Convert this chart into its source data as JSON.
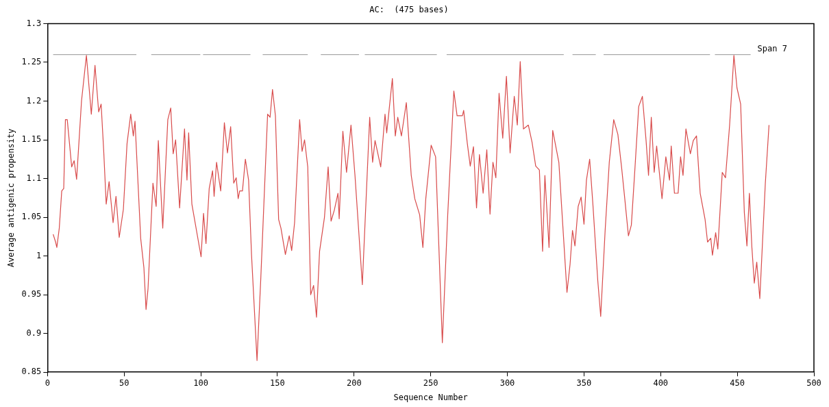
{
  "chart_data": {
    "type": "line",
    "title": "AC:  (475 bases)",
    "xlabel": "Sequence Number",
    "ylabel": "Average antigenic propensity",
    "xlim": [
      0,
      500
    ],
    "xticks": [
      0,
      50,
      100,
      150,
      200,
      250,
      300,
      350,
      400,
      450,
      500
    ],
    "ylim": [
      0.85,
      1.3
    ],
    "yticks": [
      0.85,
      0.9,
      0.95,
      1,
      1.05,
      1.1,
      1.15,
      1.2,
      1.25,
      1.3
    ],
    "grid": false,
    "legend": false,
    "marker": "none",
    "line_style": "solid",
    "series": [
      {
        "color": "#d84a4a",
        "x": [
          3.7,
          5.3,
          6.1,
          7.7,
          9.3,
          10.6,
          11.7,
          12.9,
          15.8,
          17.4,
          19,
          20.6,
          22.2,
          25.4,
          28.6,
          31,
          33.4,
          35,
          36.7,
          38.3,
          40.2,
          42.8,
          44.7,
          46.8,
          49.5,
          51.9,
          54.3,
          56,
          57.1,
          58.4,
          60.8,
          62.9,
          64.3,
          65.6,
          68.8,
          70.9,
          72.3,
          75.2,
          78.5,
          80.4,
          82,
          83.6,
          86.2,
          89.4,
          91,
          92.1,
          94.2,
          100.2,
          101.8,
          103.4,
          105.5,
          107.7,
          108.7,
          110.3,
          113,
          115.4,
          117.4,
          119.5,
          121.5,
          123.1,
          124.4,
          125.4,
          127.2,
          129.1,
          131.2,
          133.1,
          136.7,
          139.2,
          143.6,
          145.2,
          146.8,
          148.7,
          150.8,
          152.3,
          155.2,
          157.7,
          159.3,
          161.2,
          164.5,
          166.1,
          167.7,
          169.8,
          171.7,
          173.6,
          175.5,
          177.5,
          180.7,
          183.1,
          185,
          187.1,
          189.5,
          190.3,
          192.7,
          195.1,
          198,
          200.6,
          205.4,
          210.2,
          212.1,
          213.7,
          217.4,
          220.2,
          221.3,
          225,
          226.9,
          228.5,
          230.9,
          234.1,
          237.3,
          239.6,
          242.8,
          244.9,
          246.8,
          250.3,
          253.2,
          257.6,
          261.1,
          265.1,
          267.2,
          270.7,
          271.5,
          273.9,
          275.8,
          277.9,
          279.9,
          281.8,
          284.2,
          286.6,
          288.7,
          290.6,
          292.5,
          294.6,
          297,
          299.4,
          301.8,
          304.5,
          306.5,
          308.4,
          310.5,
          313.7,
          316.1,
          318.5,
          320.9,
          323,
          324.5,
          327.2,
          329.6,
          333.6,
          338.9,
          340.9,
          342.5,
          344.1,
          346.2,
          348.1,
          350,
          351.6,
          353.7,
          355.8,
          359,
          360.9,
          363.8,
          366.5,
          369.4,
          372.1,
          374.5,
          376.6,
          379,
          380.9,
          383.3,
          385.7,
          388.1,
          390.5,
          392.1,
          393.9,
          395.8,
          397.4,
          400.9,
          403.4,
          405.8,
          406.9,
          409,
          411.4,
          413,
          414.6,
          416.5,
          419.4,
          421.3,
          423.4,
          425.8,
          429,
          430.6,
          432.7,
          433.8,
          435.9,
          437.3,
          440.2,
          442.3,
          445,
          447.8,
          449.8,
          452.2,
          454.6,
          456.3,
          457.9,
          459.5,
          461.1,
          462.7,
          464.7,
          468.3,
          470.7
        ],
        "values": [
          1.028,
          1.018,
          1.011,
          1.036,
          1.084,
          1.087,
          1.176,
          1.176,
          1.115,
          1.123,
          1.099,
          1.149,
          1.2,
          1.259,
          1.183,
          1.246,
          1.186,
          1.196,
          1.135,
          1.067,
          1.096,
          1.043,
          1.077,
          1.024,
          1.06,
          1.145,
          1.183,
          1.155,
          1.174,
          1.121,
          1.023,
          0.985,
          0.931,
          0.958,
          1.094,
          1.064,
          1.149,
          1.036,
          1.176,
          1.191,
          1.132,
          1.15,
          1.062,
          1.164,
          1.098,
          1.159,
          1.067,
          0.999,
          1.055,
          1.016,
          1.087,
          1.11,
          1.077,
          1.121,
          1.084,
          1.172,
          1.133,
          1.167,
          1.094,
          1.101,
          1.074,
          1.084,
          1.084,
          1.125,
          1.098,
          1.002,
          0.865,
          0.973,
          1.183,
          1.179,
          1.215,
          1.181,
          1.047,
          1.036,
          1.002,
          1.026,
          1.007,
          1.043,
          1.176,
          1.135,
          1.15,
          1.115,
          0.95,
          0.962,
          0.921,
          1.006,
          1.05,
          1.115,
          1.045,
          1.059,
          1.081,
          1.048,
          1.161,
          1.108,
          1.169,
          1.104,
          0.963,
          1.179,
          1.121,
          1.149,
          1.115,
          1.183,
          1.159,
          1.229,
          1.155,
          1.179,
          1.155,
          1.198,
          1.104,
          1.074,
          1.053,
          1.011,
          1.074,
          1.143,
          1.128,
          0.888,
          1.053,
          1.213,
          1.181,
          1.181,
          1.188,
          1.145,
          1.116,
          1.141,
          1.062,
          1.131,
          1.081,
          1.137,
          1.054,
          1.121,
          1.101,
          1.21,
          1.152,
          1.232,
          1.133,
          1.206,
          1.169,
          1.251,
          1.164,
          1.169,
          1.147,
          1.116,
          1.111,
          1.006,
          1.104,
          1.011,
          1.162,
          1.121,
          0.953,
          0.989,
          1.033,
          1.013,
          1.064,
          1.076,
          1.041,
          1.098,
          1.125,
          1.067,
          0.968,
          0.922,
          1.033,
          1.121,
          1.176,
          1.157,
          1.115,
          1.074,
          1.026,
          1.04,
          1.115,
          1.193,
          1.206,
          1.149,
          1.104,
          1.179,
          1.108,
          1.142,
          1.074,
          1.128,
          1.098,
          1.142,
          1.081,
          1.081,
          1.128,
          1.104,
          1.164,
          1.132,
          1.149,
          1.155,
          1.081,
          1.047,
          1.018,
          1.023,
          1.001,
          1.03,
          1.009,
          1.108,
          1.101,
          1.169,
          1.259,
          1.217,
          1.196,
          1.056,
          1.013,
          1.081,
          1.012,
          0.965,
          0.992,
          0.945,
          1.094,
          1.169
        ]
      },
      {
        "name": "Span 7",
        "color": "#a8a8a8",
        "x": [
          3.7,
          58,
          63,
          67.7,
          99.7,
          100.6,
          101.5,
          132.4,
          136,
          140.4,
          169.8,
          174,
          178.3,
          203.2,
          205,
          207,
          254,
          257,
          260.4,
          336.8,
          339,
          342.5,
          357.7,
          360,
          362.8,
          432.2,
          434,
          435.4,
          458.7
        ],
        "values": [
          1.26,
          1.26,
          null,
          1.26,
          1.26,
          null,
          1.26,
          1.26,
          null,
          1.26,
          1.26,
          null,
          1.26,
          1.26,
          null,
          1.26,
          1.26,
          null,
          1.26,
          1.26,
          null,
          1.26,
          1.26,
          null,
          1.26,
          1.26,
          null,
          1.26,
          1.26
        ]
      }
    ]
  }
}
